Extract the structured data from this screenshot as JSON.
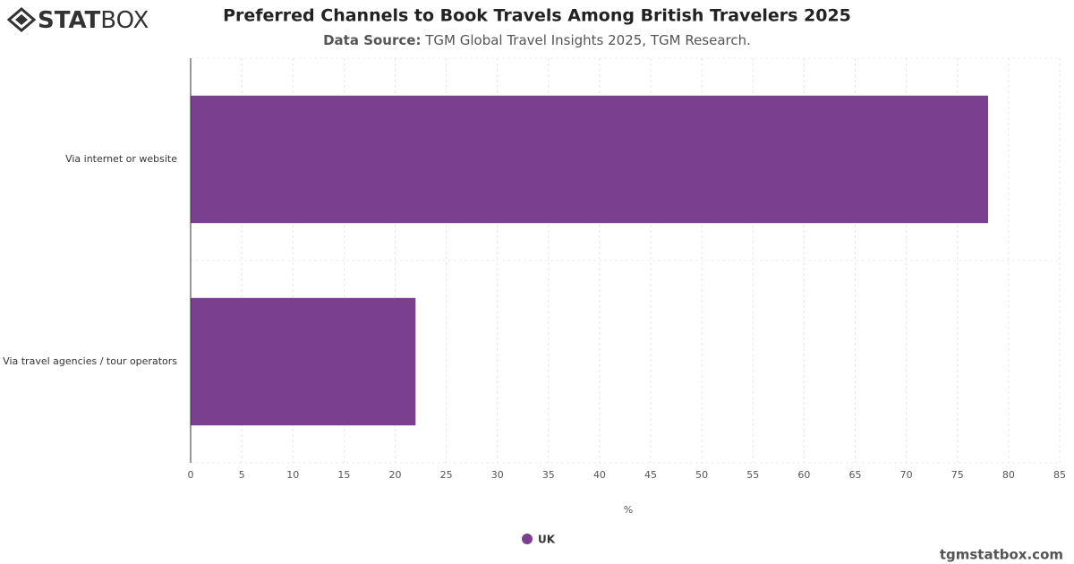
{
  "logo": {
    "bold": "STAT",
    "light": "BOX"
  },
  "footer": "tgmstatbox.com",
  "chart_data": {
    "type": "bar",
    "orientation": "horizontal",
    "title": "Preferred Channels to Book Travels Among British Travelers 2025",
    "source_label": "Data Source:",
    "source": "TGM Global Travel Insights 2025, TGM Research.",
    "categories": [
      "Via internet or website",
      "Via travel agencies / tour operators"
    ],
    "series": [
      {
        "name": "UK",
        "color": "#7b3f8f",
        "values": [
          78,
          22
        ]
      }
    ],
    "xlabel": "%",
    "xlim": [
      0,
      85
    ],
    "xticks": [
      0,
      5,
      10,
      15,
      20,
      25,
      30,
      35,
      40,
      45,
      50,
      55,
      60,
      65,
      70,
      75,
      80,
      85
    ],
    "grid": true
  }
}
